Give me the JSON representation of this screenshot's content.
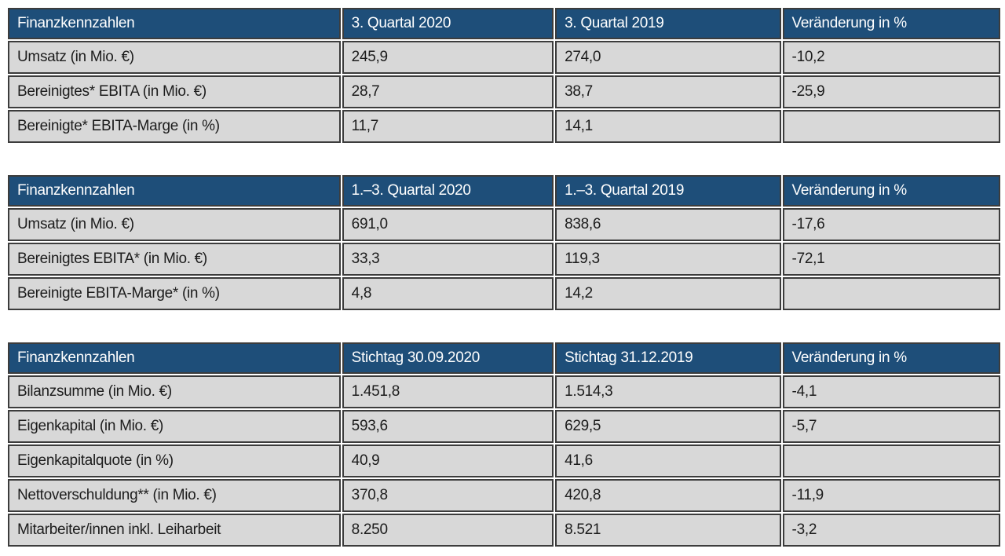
{
  "colors": {
    "header_bg": "#1e4e79",
    "header_text": "#ffffff",
    "row_bg": "#d8d8d8",
    "border": "#3c3c3c"
  },
  "tables": [
    {
      "name": "quartal-3",
      "headers": [
        "Finanzkennzahlen",
        "3. Quartal 2020",
        "3. Quartal 2019",
        "Veränderung in %"
      ],
      "rows": [
        {
          "cells": [
            "Umsatz (in Mio. €)",
            "245,9",
            "274,0",
            "-10,2"
          ]
        },
        {
          "cells": [
            "Bereinigtes* EBITA (in Mio. €)",
            "28,7",
            "38,7",
            "-25,9"
          ]
        },
        {
          "cells": [
            "Bereinigte* EBITA-Marge (in %)",
            "11,7",
            "14,1",
            ""
          ]
        }
      ]
    },
    {
      "name": "quartal-1-3",
      "headers": [
        "Finanzkennzahlen",
        "1.–3. Quartal 2020",
        "1.–3. Quartal 2019",
        "Veränderung in %"
      ],
      "rows": [
        {
          "cells": [
            "Umsatz (in Mio. €)",
            "691,0",
            "838,6",
            "-17,6"
          ]
        },
        {
          "cells": [
            "Bereinigtes EBITA* (in Mio. €)",
            "33,3",
            "119,3",
            "-72,1"
          ]
        },
        {
          "cells": [
            "Bereinigte EBITA-Marge* (in %)",
            "4,8",
            "14,2",
            ""
          ]
        }
      ]
    },
    {
      "name": "stichtag",
      "headers": [
        "Finanzkennzahlen",
        "Stichtag 30.09.2020",
        "Stichtag 31.12.2019",
        "Veränderung in %"
      ],
      "rows": [
        {
          "cells": [
            "Bilanzsumme (in Mio. €)",
            "1.451,8",
            "1.514,3",
            "-4,1"
          ]
        },
        {
          "cells": [
            "Eigenkapital (in Mio. €)",
            "593,6",
            "629,5",
            "-5,7"
          ]
        },
        {
          "cells": [
            "Eigenkapitalquote (in %)",
            "40,9",
            "41,6",
            ""
          ]
        },
        {
          "cells": [
            "Nettoverschuldung** (in Mio. €)",
            "370,8",
            "420,8",
            "-11,9"
          ]
        },
        {
          "cells": [
            "Mitarbeiter/innen inkl. Leiharbeit",
            "8.250",
            "8.521",
            "-3,2"
          ]
        }
      ]
    }
  ]
}
